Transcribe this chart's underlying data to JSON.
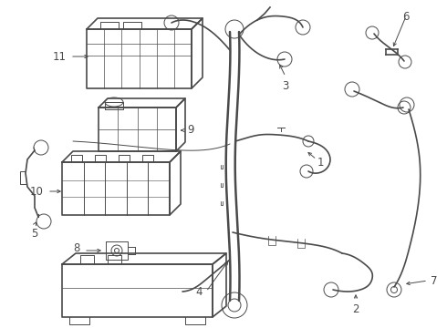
{
  "background_color": "#ffffff",
  "line_color": "#4a4a4a",
  "label_color": "#000000",
  "label_fontsize": 8.5,
  "fig_width": 4.9,
  "fig_height": 3.6,
  "dpi": 100
}
